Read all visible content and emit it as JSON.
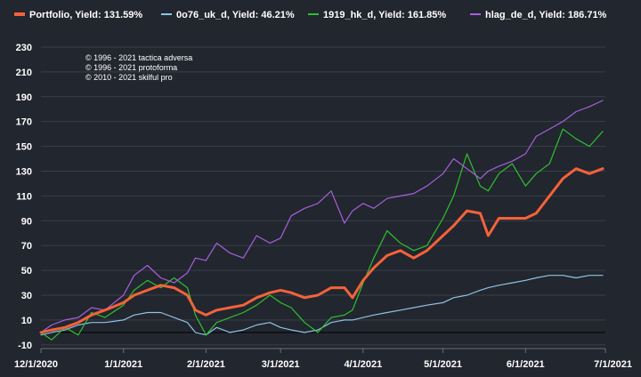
{
  "legend": [
    {
      "label": "Portfolio, Yield: 131.59%",
      "color": "#f4623a"
    },
    {
      "label": "0o76_uk_d, Yield: 46.21%",
      "color": "#8fc3e6"
    },
    {
      "label": "1919_hk_d, Yield: 161.85%",
      "color": "#2ec12e"
    },
    {
      "label": "hlag_de_d, Yield: 186.71%",
      "color": "#a85fe0"
    }
  ],
  "copyright": [
    "© 1996 - 2021 tactica adversa",
    "© 1996 - 2021 protoforma",
    "© 2010 - 2021 skilful pro"
  ],
  "chart_data": {
    "type": "line",
    "x_ticks": [
      "12/1/2020",
      "1/1/2021",
      "2/1/2021",
      "3/1/2021",
      "4/1/2021",
      "5/1/2021",
      "6/1/2021",
      "7/1/2021"
    ],
    "y_ticks": [
      -10,
      10,
      30,
      50,
      70,
      90,
      110,
      130,
      150,
      170,
      190,
      210,
      230
    ],
    "ylim": [
      -13,
      235
    ],
    "xlim": [
      "2020-12-01",
      "2021-07-01"
    ],
    "grid": "horizontal",
    "legend_position": "top",
    "series": [
      {
        "name": "Portfolio, Yield: 131.59%",
        "color": "#f4623a",
        "points": [
          [
            "2020-12-01",
            0
          ],
          [
            "2020-12-05",
            2
          ],
          [
            "2020-12-10",
            4
          ],
          [
            "2020-12-15",
            8
          ],
          [
            "2020-12-20",
            14
          ],
          [
            "2020-12-25",
            18
          ],
          [
            "2021-01-01",
            24
          ],
          [
            "2021-01-05",
            30
          ],
          [
            "2021-01-10",
            34
          ],
          [
            "2021-01-15",
            38
          ],
          [
            "2021-01-20",
            36
          ],
          [
            "2021-01-25",
            30
          ],
          [
            "2021-01-28",
            18
          ],
          [
            "2021-02-01",
            14
          ],
          [
            "2021-02-05",
            18
          ],
          [
            "2021-02-10",
            20
          ],
          [
            "2021-02-15",
            22
          ],
          [
            "2021-02-20",
            28
          ],
          [
            "2021-02-25",
            32
          ],
          [
            "2021-03-01",
            34
          ],
          [
            "2021-03-05",
            32
          ],
          [
            "2021-03-10",
            28
          ],
          [
            "2021-03-15",
            30
          ],
          [
            "2021-03-20",
            36
          ],
          [
            "2021-03-25",
            36
          ],
          [
            "2021-03-28",
            28
          ],
          [
            "2021-04-01",
            42
          ],
          [
            "2021-04-05",
            52
          ],
          [
            "2021-04-10",
            62
          ],
          [
            "2021-04-15",
            66
          ],
          [
            "2021-04-20",
            60
          ],
          [
            "2021-04-25",
            66
          ],
          [
            "2021-05-01",
            78
          ],
          [
            "2021-05-05",
            86
          ],
          [
            "2021-05-10",
            98
          ],
          [
            "2021-05-15",
            96
          ],
          [
            "2021-05-18",
            78
          ],
          [
            "2021-05-22",
            92
          ],
          [
            "2021-05-27",
            92
          ],
          [
            "2021-06-01",
            92
          ],
          [
            "2021-06-05",
            96
          ],
          [
            "2021-06-10",
            110
          ],
          [
            "2021-06-15",
            124
          ],
          [
            "2021-06-20",
            132
          ],
          [
            "2021-06-25",
            128
          ],
          [
            "2021-06-30",
            132
          ]
        ]
      },
      {
        "name": "0o76_uk_d, Yield: 46.21%",
        "color": "#8fc3e6",
        "points": [
          [
            "2020-12-01",
            -2
          ],
          [
            "2020-12-05",
            0
          ],
          [
            "2020-12-10",
            2
          ],
          [
            "2020-12-15",
            6
          ],
          [
            "2020-12-20",
            8
          ],
          [
            "2020-12-25",
            8
          ],
          [
            "2021-01-01",
            10
          ],
          [
            "2021-01-05",
            14
          ],
          [
            "2021-01-10",
            16
          ],
          [
            "2021-01-15",
            16
          ],
          [
            "2021-01-20",
            12
          ],
          [
            "2021-01-25",
            8
          ],
          [
            "2021-01-28",
            0
          ],
          [
            "2021-02-01",
            -2
          ],
          [
            "2021-02-05",
            4
          ],
          [
            "2021-02-10",
            0
          ],
          [
            "2021-02-15",
            2
          ],
          [
            "2021-02-20",
            6
          ],
          [
            "2021-02-25",
            8
          ],
          [
            "2021-03-01",
            4
          ],
          [
            "2021-03-05",
            2
          ],
          [
            "2021-03-10",
            0
          ],
          [
            "2021-03-15",
            2
          ],
          [
            "2021-03-20",
            8
          ],
          [
            "2021-03-25",
            10
          ],
          [
            "2021-03-28",
            10
          ],
          [
            "2021-04-01",
            12
          ],
          [
            "2021-04-05",
            14
          ],
          [
            "2021-04-10",
            16
          ],
          [
            "2021-04-15",
            18
          ],
          [
            "2021-04-20",
            20
          ],
          [
            "2021-04-25",
            22
          ],
          [
            "2021-05-01",
            24
          ],
          [
            "2021-05-05",
            28
          ],
          [
            "2021-05-10",
            30
          ],
          [
            "2021-05-15",
            34
          ],
          [
            "2021-05-18",
            36
          ],
          [
            "2021-05-22",
            38
          ],
          [
            "2021-05-27",
            40
          ],
          [
            "2021-06-01",
            42
          ],
          [
            "2021-06-05",
            44
          ],
          [
            "2021-06-10",
            46
          ],
          [
            "2021-06-15",
            46
          ],
          [
            "2021-06-20",
            44
          ],
          [
            "2021-06-25",
            46
          ],
          [
            "2021-06-30",
            46
          ]
        ]
      },
      {
        "name": "1919_hk_d, Yield: 161.85%",
        "color": "#2ec12e",
        "points": [
          [
            "2020-12-01",
            0
          ],
          [
            "2020-12-05",
            -6
          ],
          [
            "2020-12-10",
            4
          ],
          [
            "2020-12-15",
            -2
          ],
          [
            "2020-12-20",
            16
          ],
          [
            "2020-12-25",
            12
          ],
          [
            "2021-01-01",
            22
          ],
          [
            "2021-01-05",
            34
          ],
          [
            "2021-01-10",
            42
          ],
          [
            "2021-01-15",
            36
          ],
          [
            "2021-01-20",
            44
          ],
          [
            "2021-01-25",
            36
          ],
          [
            "2021-01-28",
            14
          ],
          [
            "2021-02-01",
            -2
          ],
          [
            "2021-02-05",
            8
          ],
          [
            "2021-02-10",
            12
          ],
          [
            "2021-02-15",
            16
          ],
          [
            "2021-02-20",
            22
          ],
          [
            "2021-02-25",
            30
          ],
          [
            "2021-03-01",
            24
          ],
          [
            "2021-03-05",
            20
          ],
          [
            "2021-03-10",
            8
          ],
          [
            "2021-03-15",
            0
          ],
          [
            "2021-03-20",
            12
          ],
          [
            "2021-03-25",
            14
          ],
          [
            "2021-03-28",
            18
          ],
          [
            "2021-04-01",
            40
          ],
          [
            "2021-04-05",
            60
          ],
          [
            "2021-04-10",
            82
          ],
          [
            "2021-04-15",
            72
          ],
          [
            "2021-04-20",
            66
          ],
          [
            "2021-04-25",
            70
          ],
          [
            "2021-05-01",
            92
          ],
          [
            "2021-05-05",
            110
          ],
          [
            "2021-05-10",
            144
          ],
          [
            "2021-05-15",
            118
          ],
          [
            "2021-05-18",
            114
          ],
          [
            "2021-05-22",
            128
          ],
          [
            "2021-05-27",
            136
          ],
          [
            "2021-06-01",
            118
          ],
          [
            "2021-06-05",
            128
          ],
          [
            "2021-06-10",
            136
          ],
          [
            "2021-06-15",
            164
          ],
          [
            "2021-06-20",
            156
          ],
          [
            "2021-06-25",
            150
          ],
          [
            "2021-06-30",
            162
          ]
        ]
      },
      {
        "name": "hlag_de_d, Yield: 186.71%",
        "color": "#a85fe0",
        "points": [
          [
            "2020-12-01",
            0
          ],
          [
            "2020-12-05",
            6
          ],
          [
            "2020-12-10",
            10
          ],
          [
            "2020-12-15",
            12
          ],
          [
            "2020-12-20",
            20
          ],
          [
            "2020-12-25",
            18
          ],
          [
            "2021-01-01",
            30
          ],
          [
            "2021-01-05",
            46
          ],
          [
            "2021-01-10",
            54
          ],
          [
            "2021-01-15",
            44
          ],
          [
            "2021-01-20",
            40
          ],
          [
            "2021-01-25",
            48
          ],
          [
            "2021-01-28",
            60
          ],
          [
            "2021-02-01",
            58
          ],
          [
            "2021-02-05",
            72
          ],
          [
            "2021-02-10",
            64
          ],
          [
            "2021-02-15",
            60
          ],
          [
            "2021-02-20",
            78
          ],
          [
            "2021-02-25",
            72
          ],
          [
            "2021-03-01",
            76
          ],
          [
            "2021-03-05",
            94
          ],
          [
            "2021-03-10",
            100
          ],
          [
            "2021-03-15",
            104
          ],
          [
            "2021-03-20",
            114
          ],
          [
            "2021-03-25",
            88
          ],
          [
            "2021-03-28",
            98
          ],
          [
            "2021-04-01",
            104
          ],
          [
            "2021-04-05",
            100
          ],
          [
            "2021-04-10",
            108
          ],
          [
            "2021-04-15",
            110
          ],
          [
            "2021-04-20",
            112
          ],
          [
            "2021-04-25",
            118
          ],
          [
            "2021-05-01",
            128
          ],
          [
            "2021-05-05",
            140
          ],
          [
            "2021-05-10",
            132
          ],
          [
            "2021-05-15",
            124
          ],
          [
            "2021-05-18",
            130
          ],
          [
            "2021-05-22",
            134
          ],
          [
            "2021-05-27",
            138
          ],
          [
            "2021-06-01",
            144
          ],
          [
            "2021-06-05",
            158
          ],
          [
            "2021-06-10",
            164
          ],
          [
            "2021-06-15",
            170
          ],
          [
            "2021-06-20",
            178
          ],
          [
            "2021-06-25",
            182
          ],
          [
            "2021-06-30",
            187
          ]
        ]
      }
    ]
  }
}
